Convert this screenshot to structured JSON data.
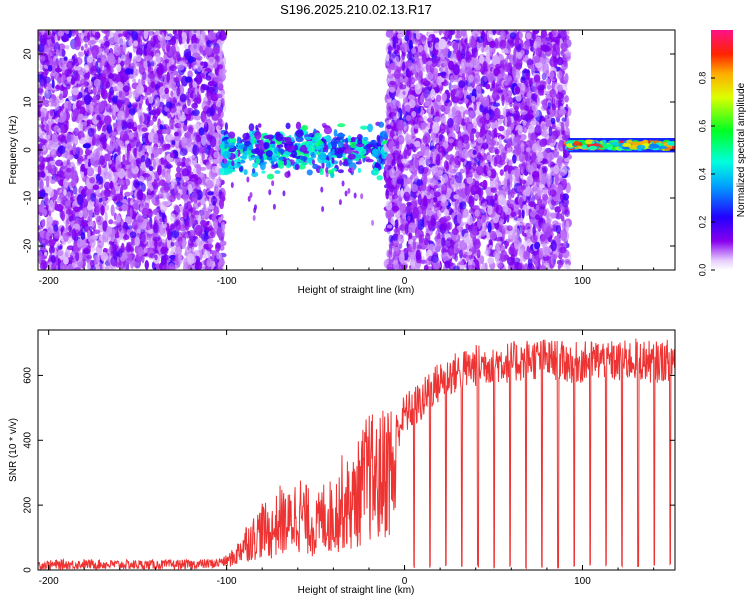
{
  "title": "S196.2025.210.02.13.R17",
  "chart_data": [
    {
      "type": "heatmap",
      "xlabel": "Height of straight line (km)",
      "ylabel": "Frequency (Hz)",
      "xlim": [
        -206,
        152
      ],
      "ylim": [
        -25,
        25
      ],
      "xticks": [
        -200,
        -100,
        0,
        100
      ],
      "xtick_labels": [
        "-200",
        "-100",
        "0",
        "100"
      ],
      "yticks": [
        -20,
        -10,
        0,
        10,
        20
      ],
      "ytick_labels": [
        "-20",
        "-10",
        "0",
        "10",
        "20"
      ],
      "colorbar": {
        "label": "Normalized spectral amplitude",
        "range": [
          0,
          1
        ],
        "ticks": [
          0.0,
          0.2,
          0.4,
          0.6,
          0.8
        ],
        "tick_labels": [
          "0.0",
          "0.2",
          "0.4",
          "0.6",
          "0.8"
        ],
        "colormap": "rainbow (magenta-red-yellow-green-cyan-blue-violet-white)"
      },
      "regions": [
        {
          "x": [
            -206,
            -102
          ],
          "pattern": "noise",
          "freq_range": [
            -25,
            25
          ]
        },
        {
          "x": [
            -102,
            -10
          ],
          "pattern": "signal band",
          "freq_center": 0,
          "freq_spread": 6
        },
        {
          "x": [
            -10,
            92
          ],
          "pattern": "noise",
          "freq_range": [
            -25,
            25
          ]
        },
        {
          "x": [
            92,
            152
          ],
          "pattern": "narrow line",
          "freq_center": 1,
          "freq_spread": 1.5
        }
      ]
    },
    {
      "type": "line",
      "xlabel": "Height of straight line (km)",
      "ylabel": "SNR (10 * v/v)",
      "xlim": [
        -206,
        152
      ],
      "ylim": [
        0,
        740
      ],
      "xticks": [
        -200,
        -100,
        0,
        100
      ],
      "xtick_labels": [
        "-200",
        "-100",
        "0",
        "100"
      ],
      "yticks": [
        0,
        200,
        400,
        600
      ],
      "ytick_labels": [
        "0",
        "200",
        "400",
        "600"
      ],
      "series": [
        {
          "color": "#ee3333",
          "x": [
            -206,
            -180,
            -150,
            -120,
            -105,
            -95,
            -90,
            -85,
            -80,
            -75,
            -70,
            -65,
            -60,
            -55,
            -50,
            -45,
            -40,
            -35,
            -30,
            -25,
            -20,
            -15,
            -10,
            -5,
            0,
            5,
            10,
            15,
            20,
            25,
            30,
            35,
            40,
            50,
            60,
            70,
            80,
            90,
            100,
            110,
            120,
            130,
            140,
            152
          ],
          "y": [
            15,
            18,
            16,
            17,
            20,
            60,
            120,
            140,
            180,
            160,
            220,
            200,
            260,
            220,
            180,
            240,
            230,
            300,
            280,
            350,
            420,
            380,
            460,
            420,
            480,
            500,
            520,
            560,
            580,
            600,
            610,
            620,
            630,
            640,
            640,
            650,
            650,
            640,
            640,
            650,
            640,
            650,
            640,
            650
          ]
        }
      ]
    }
  ]
}
